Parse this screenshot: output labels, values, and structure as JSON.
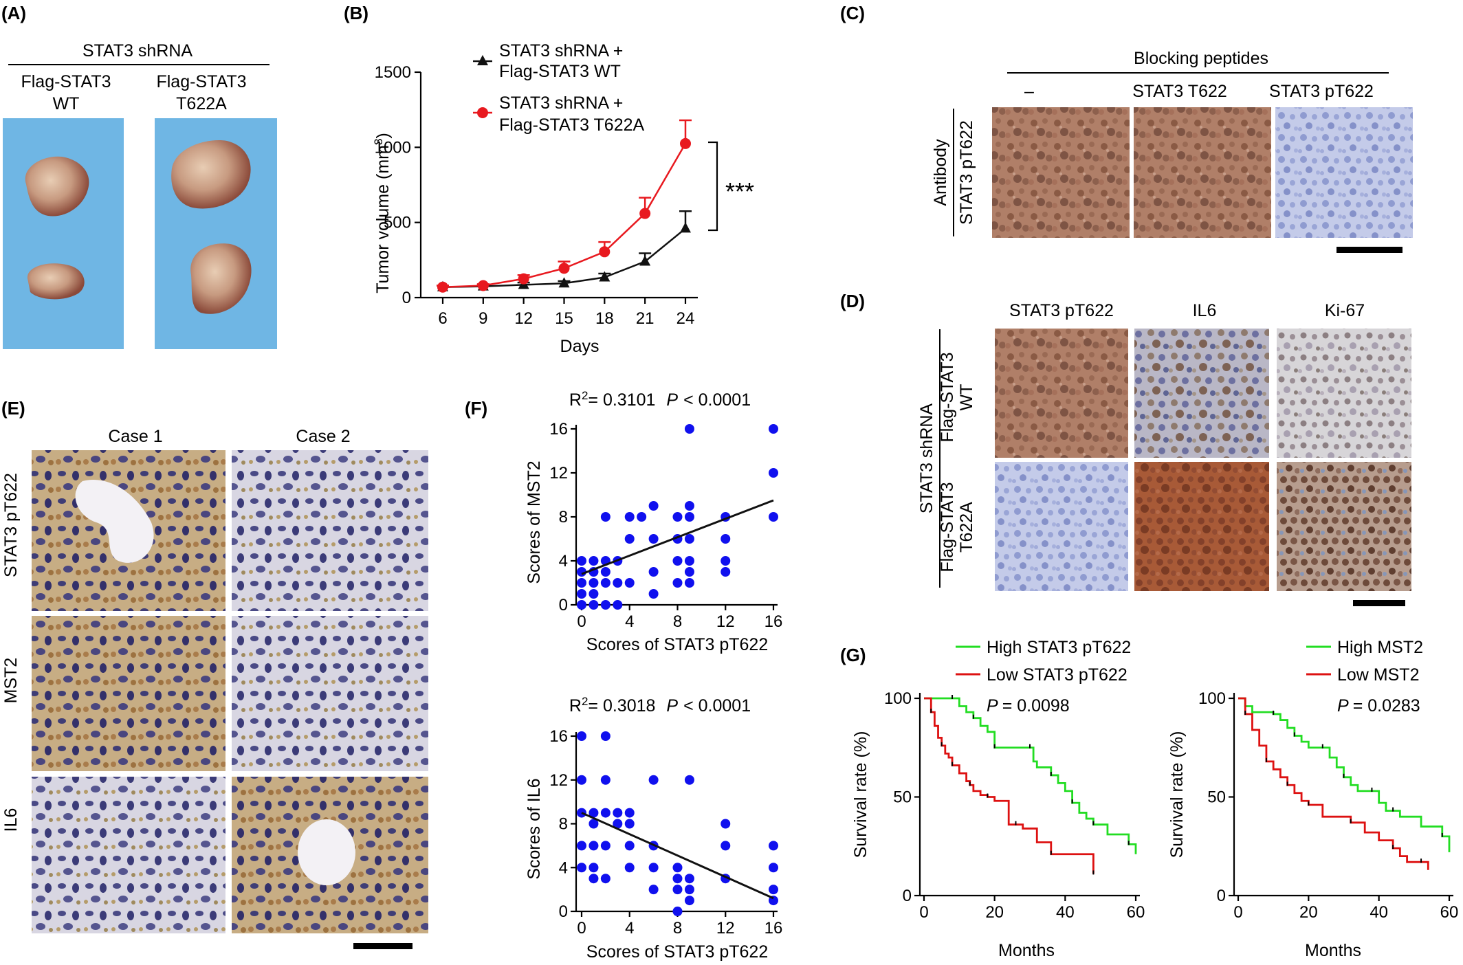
{
  "colors": {
    "red": "#e8191f",
    "black": "#111111",
    "blue": "#1010ee",
    "green": "#22dd22",
    "darkred": "#dd1111",
    "tumor_bg": "#6fb6e4",
    "ihc_brown": "#a0634b",
    "ihc_blue": "#aab4e0"
  },
  "panel_a": {
    "label": "(A)",
    "header": "STAT3 shRNA",
    "col1_line1": "Flag-STAT3",
    "col1_line2": "WT",
    "col2_line1": "Flag-STAT3",
    "col2_line2": "T622A"
  },
  "panel_b": {
    "label": "(B)",
    "legend1_l1": "STAT3 shRNA +",
    "legend1_l2": "Flag-STAT3 WT",
    "legend2_l1": "STAT3 shRNA +",
    "legend2_l2": "Flag-STAT3 T622A",
    "significance": "***",
    "ylabel": "Tumor volume (mm",
    "ylabel_sup": "3",
    "ylabel_end": ")",
    "xlabel": "Days"
  },
  "panel_c": {
    "label": "(C)",
    "header": "Blocking peptides",
    "col1": "–",
    "col2": "STAT3 T622",
    "col3": "STAT3 pT622",
    "row_label1": "Antibody",
    "row_label2": "STAT3 pT622"
  },
  "panel_d": {
    "label": "(D)",
    "col1": "STAT3 pT622",
    "col2": "IL6",
    "col3": "Ki-67",
    "group_label": "STAT3 shRNA",
    "row1_l1": "Flag-STAT3",
    "row1_l2": "WT",
    "row2_l1": "Flag-STAT3",
    "row2_l2": "T622A"
  },
  "panel_e": {
    "label": "(E)",
    "col1": "Case 1",
    "col2": "Case 2",
    "row1": "STAT3 pT622",
    "row2": "MST2",
    "row3": "IL6"
  },
  "panel_f": {
    "label": "(F)",
    "top_stat_r": "R",
    "top_stat_sup": "2",
    "top_stat_val": "= 0.3101",
    "top_p_italic": "P",
    "top_p_rest": "< 0.0001",
    "top_ylabel": "Scores of MST2",
    "top_xlabel": "Scores of STAT3 pT622",
    "bot_stat_r": "R",
    "bot_stat_sup": "2",
    "bot_stat_val": "= 0.3018",
    "bot_p_italic": "P",
    "bot_p_rest": "< 0.0001",
    "bot_ylabel": "Scores of IL6",
    "bot_xlabel": "Scores of STAT3 pT622"
  },
  "panel_g": {
    "label": "(G)",
    "left_legend_high": "High STAT3 pT622",
    "left_legend_low": "Low STAT3 pT622",
    "left_p_italic": "P",
    "left_p_rest": "= 0.0098",
    "right_legend_high": "High MST2",
    "right_legend_low": "Low MST2",
    "right_p_italic": "P",
    "right_p_rest": "= 0.0283",
    "ylabel": "Survival rate (%)",
    "xlabel": "Months"
  },
  "chart_data": [
    {
      "type": "line",
      "panel": "B",
      "xlabel": "Days",
      "ylabel": "Tumor volume (mm3)",
      "x": [
        6,
        9,
        12,
        15,
        18,
        21,
        24
      ],
      "xlim": [
        6,
        24
      ],
      "ylim": [
        0,
        1500
      ],
      "yticks": [
        0,
        500,
        1000,
        1500
      ],
      "series": [
        {
          "name": "STAT3 shRNA + Flag-STAT3 WT",
          "values": [
            70,
            75,
            85,
            95,
            135,
            240,
            460
          ],
          "errors": [
            10,
            10,
            15,
            15,
            25,
            55,
            115
          ],
          "marker": "triangle",
          "color": "#111111"
        },
        {
          "name": "STAT3 shRNA + Flag-STAT3 T622A",
          "values": [
            70,
            80,
            125,
            195,
            305,
            560,
            1025
          ],
          "errors": [
            10,
            10,
            25,
            45,
            65,
            105,
            155
          ],
          "marker": "circle",
          "color": "#e8191f"
        }
      ]
    },
    {
      "type": "scatter",
      "panel": "F-top",
      "xlabel": "Scores of STAT3 pT622",
      "ylabel": "Scores of MST2",
      "xlim": [
        0,
        16
      ],
      "ylim": [
        0,
        16
      ],
      "xticks": [
        0,
        4,
        8,
        12,
        16
      ],
      "yticks": [
        0,
        4,
        8,
        12,
        16
      ],
      "points": [
        [
          0,
          0
        ],
        [
          0,
          1
        ],
        [
          0,
          2
        ],
        [
          0,
          3
        ],
        [
          0,
          4
        ],
        [
          1,
          0
        ],
        [
          1,
          1
        ],
        [
          1,
          2
        ],
        [
          1,
          3
        ],
        [
          1,
          4
        ],
        [
          2,
          0
        ],
        [
          2,
          2
        ],
        [
          2,
          3
        ],
        [
          2,
          4
        ],
        [
          2,
          8
        ],
        [
          3,
          0
        ],
        [
          3,
          2
        ],
        [
          3,
          4
        ],
        [
          4,
          2
        ],
        [
          4,
          6
        ],
        [
          4,
          8
        ],
        [
          5,
          8
        ],
        [
          6,
          1
        ],
        [
          6,
          3
        ],
        [
          6,
          6
        ],
        [
          6,
          9
        ],
        [
          8,
          2
        ],
        [
          8,
          4
        ],
        [
          8,
          6
        ],
        [
          8,
          8
        ],
        [
          9,
          2
        ],
        [
          9,
          3
        ],
        [
          9,
          4
        ],
        [
          9,
          6
        ],
        [
          9,
          8
        ],
        [
          9,
          9
        ],
        [
          9,
          16
        ],
        [
          12,
          3
        ],
        [
          12,
          4
        ],
        [
          12,
          6
        ],
        [
          12,
          8
        ],
        [
          16,
          8
        ],
        [
          16,
          12
        ],
        [
          16,
          16
        ]
      ],
      "fit": [
        [
          0,
          2.8
        ],
        [
          16,
          9.5
        ]
      ],
      "r2": "0.3101",
      "p": "< 0.0001"
    },
    {
      "type": "scatter",
      "panel": "F-bottom",
      "xlabel": "Scores of STAT3 pT622",
      "ylabel": "Scores of IL6",
      "xlim": [
        0,
        16
      ],
      "ylim": [
        0,
        16
      ],
      "xticks": [
        0,
        4,
        8,
        12,
        16
      ],
      "yticks": [
        0,
        4,
        8,
        12,
        16
      ],
      "points": [
        [
          0,
          4
        ],
        [
          0,
          6
        ],
        [
          0,
          9
        ],
        [
          0,
          12
        ],
        [
          0,
          16
        ],
        [
          1,
          3
        ],
        [
          1,
          4
        ],
        [
          1,
          6
        ],
        [
          1,
          8
        ],
        [
          1,
          9
        ],
        [
          2,
          3
        ],
        [
          2,
          6
        ],
        [
          2,
          9
        ],
        [
          2,
          12
        ],
        [
          2,
          16
        ],
        [
          3,
          8
        ],
        [
          3,
          9
        ],
        [
          4,
          4
        ],
        [
          4,
          6
        ],
        [
          4,
          8
        ],
        [
          4,
          9
        ],
        [
          6,
          2
        ],
        [
          6,
          4
        ],
        [
          6,
          6
        ],
        [
          6,
          12
        ],
        [
          8,
          0
        ],
        [
          8,
          2
        ],
        [
          8,
          3
        ],
        [
          8,
          4
        ],
        [
          9,
          1
        ],
        [
          9,
          2
        ],
        [
          9,
          3
        ],
        [
          9,
          12
        ],
        [
          12,
          3
        ],
        [
          12,
          6
        ],
        [
          12,
          8
        ],
        [
          16,
          1
        ],
        [
          16,
          2
        ],
        [
          16,
          4
        ],
        [
          16,
          6
        ]
      ],
      "fit": [
        [
          0,
          9
        ],
        [
          16,
          1.2
        ]
      ],
      "r2": "0.3018",
      "p": "< 0.0001"
    },
    {
      "type": "line",
      "panel": "G-left",
      "xlabel": "Months",
      "ylabel": "Survival rate (%)",
      "xlim": [
        0,
        60
      ],
      "ylim": [
        0,
        100
      ],
      "xticks": [
        0,
        20,
        40,
        60
      ],
      "yticks": [
        0,
        50,
        100
      ],
      "p": "= 0.0098",
      "series": [
        {
          "name": "High STAT3 pT622",
          "color": "#22dd22",
          "steps": [
            [
              0,
              100
            ],
            [
              8,
              100
            ],
            [
              10,
              96
            ],
            [
              12,
              93
            ],
            [
              14,
              90
            ],
            [
              16,
              86
            ],
            [
              18,
              83
            ],
            [
              20,
              75
            ],
            [
              22,
              75
            ],
            [
              24,
              75
            ],
            [
              30,
              75
            ],
            [
              31,
              68
            ],
            [
              32,
              65
            ],
            [
              36,
              61
            ],
            [
              38,
              57
            ],
            [
              40,
              53
            ],
            [
              42,
              47
            ],
            [
              44,
              42
            ],
            [
              46,
              39
            ],
            [
              48,
              36
            ],
            [
              52,
              31
            ],
            [
              56,
              31
            ],
            [
              58,
              26
            ],
            [
              60,
              21
            ]
          ]
        },
        {
          "name": "Low STAT3 pT622",
          "color": "#dd1111",
          "steps": [
            [
              0,
              100
            ],
            [
              2,
              93
            ],
            [
              3,
              86
            ],
            [
              4,
              80
            ],
            [
              5,
              76
            ],
            [
              6,
              72
            ],
            [
              7,
              70
            ],
            [
              8,
              66
            ],
            [
              10,
              62
            ],
            [
              12,
              58
            ],
            [
              13,
              56
            ],
            [
              14,
              53
            ],
            [
              16,
              51
            ],
            [
              18,
              50
            ],
            [
              20,
              48
            ],
            [
              24,
              36
            ],
            [
              26,
              36
            ],
            [
              28,
              34
            ],
            [
              32,
              27
            ],
            [
              36,
              21
            ],
            [
              40,
              21
            ],
            [
              46,
              21
            ],
            [
              48,
              11
            ]
          ]
        }
      ]
    },
    {
      "type": "line",
      "panel": "G-right",
      "xlabel": "Months",
      "ylabel": "Survival rate (%)",
      "xlim": [
        0,
        60
      ],
      "ylim": [
        0,
        100
      ],
      "xticks": [
        0,
        20,
        40,
        60
      ],
      "yticks": [
        0,
        50,
        100
      ],
      "p": "= 0.0283",
      "series": [
        {
          "name": "High MST2",
          "color": "#22dd22",
          "steps": [
            [
              0,
              100
            ],
            [
              2,
              96
            ],
            [
              4,
              93
            ],
            [
              6,
              93
            ],
            [
              10,
              92
            ],
            [
              12,
              89
            ],
            [
              14,
              85
            ],
            [
              16,
              81
            ],
            [
              18,
              78
            ],
            [
              20,
              75
            ],
            [
              24,
              75
            ],
            [
              26,
              70
            ],
            [
              28,
              65
            ],
            [
              30,
              60
            ],
            [
              32,
              56
            ],
            [
              34,
              53
            ],
            [
              38,
              53
            ],
            [
              40,
              47
            ],
            [
              42,
              43
            ],
            [
              44,
              43
            ],
            [
              46,
              40
            ],
            [
              52,
              35
            ],
            [
              58,
              30
            ],
            [
              60,
              22
            ]
          ]
        },
        {
          "name": "Low MST2",
          "color": "#dd1111",
          "steps": [
            [
              0,
              100
            ],
            [
              2,
              92
            ],
            [
              4,
              84
            ],
            [
              6,
              76
            ],
            [
              8,
              68
            ],
            [
              10,
              64
            ],
            [
              12,
              60
            ],
            [
              14,
              56
            ],
            [
              16,
              52
            ],
            [
              18,
              48
            ],
            [
              20,
              46
            ],
            [
              24,
              40
            ],
            [
              28,
              40
            ],
            [
              32,
              37
            ],
            [
              36,
              32
            ],
            [
              40,
              28
            ],
            [
              44,
              24
            ],
            [
              46,
              20
            ],
            [
              48,
              17
            ],
            [
              52,
              17
            ],
            [
              54,
              13
            ]
          ]
        }
      ]
    }
  ]
}
